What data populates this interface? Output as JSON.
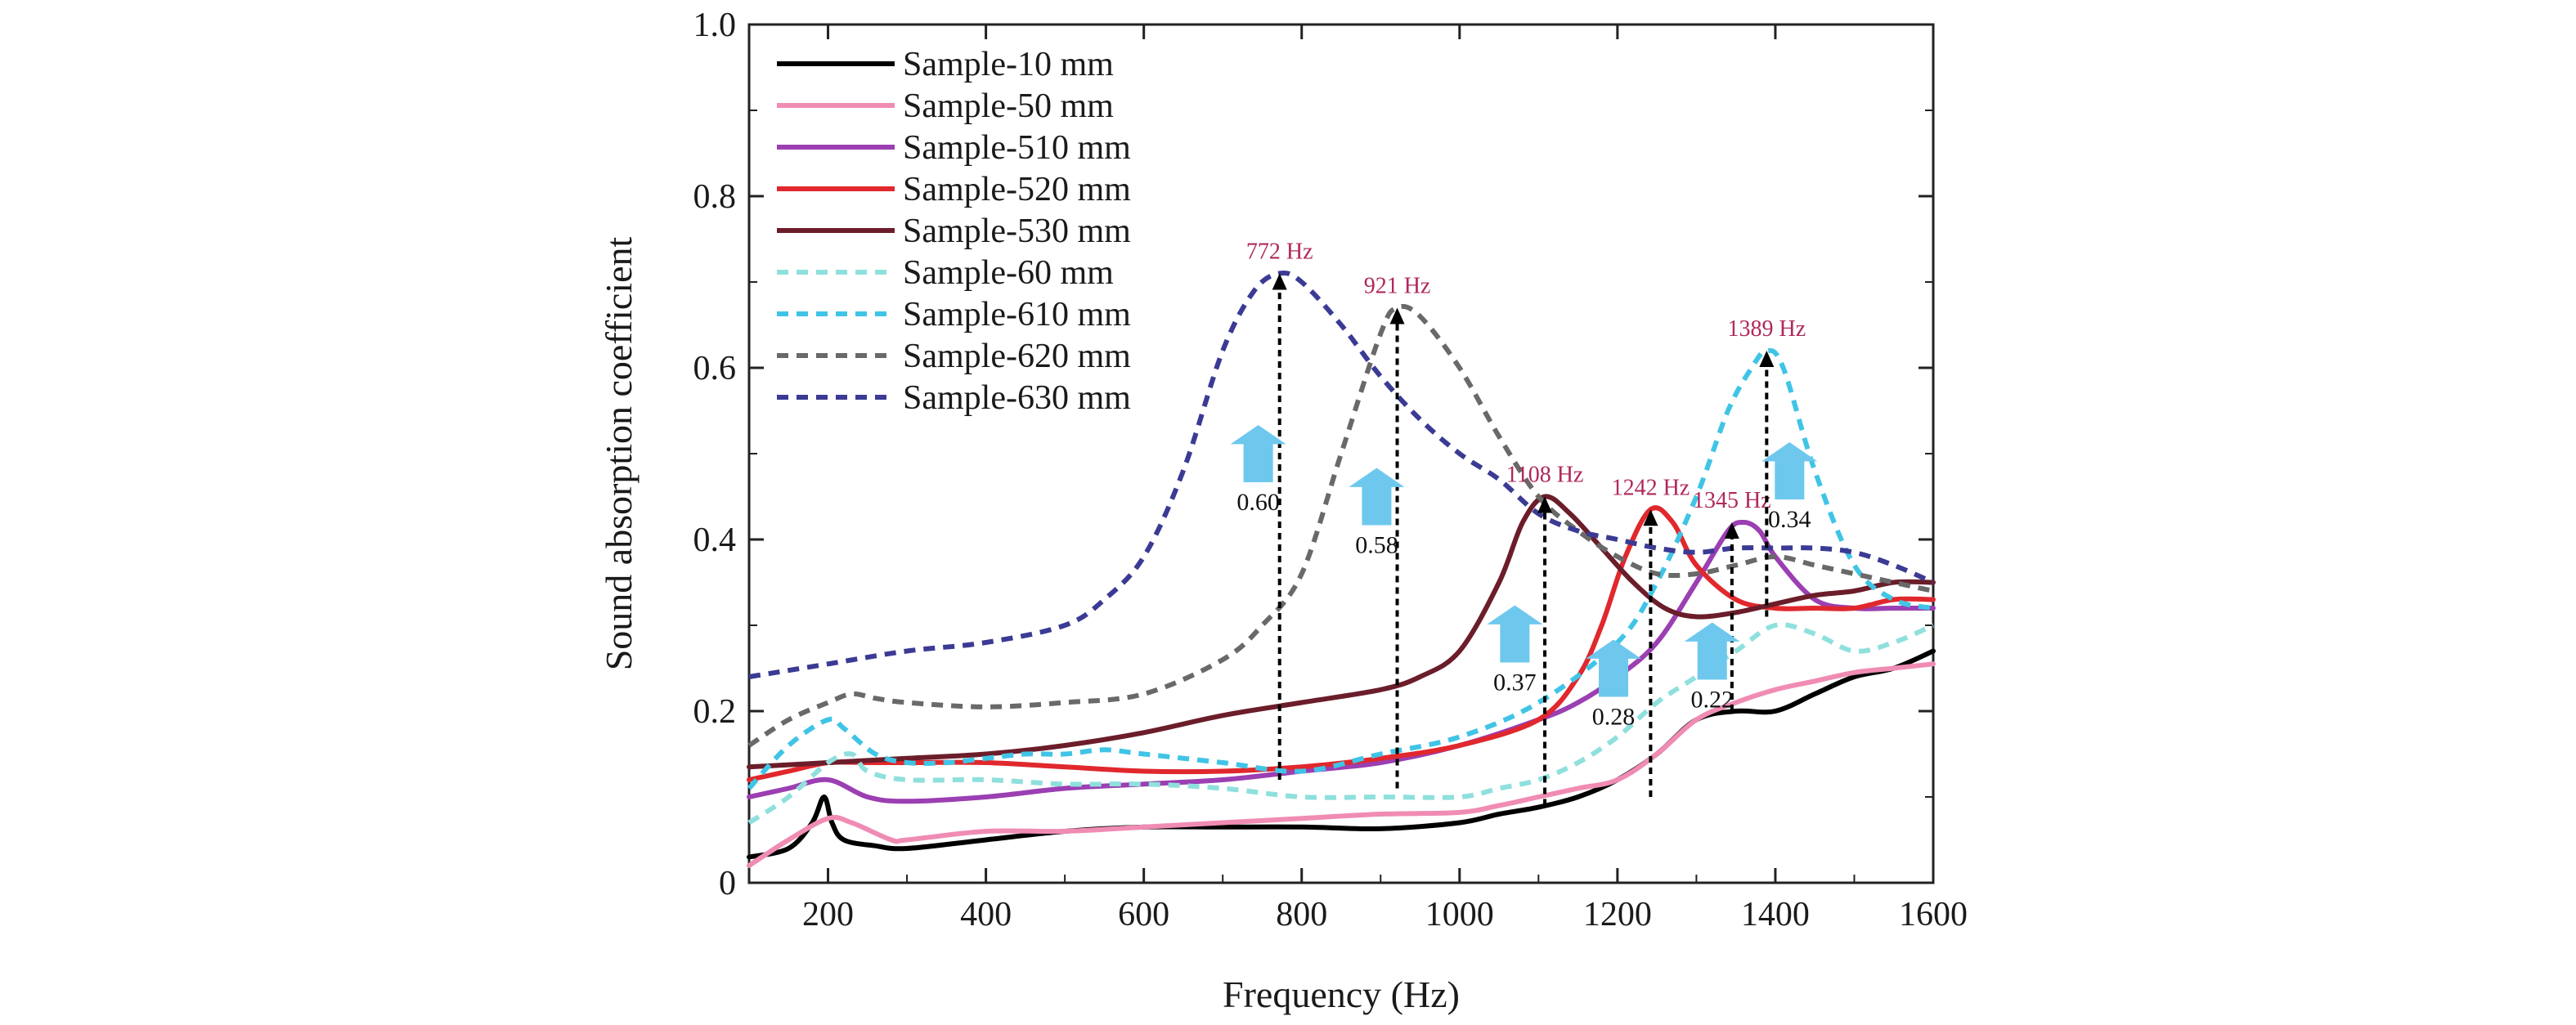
{
  "chart_data": {
    "type": "line",
    "xlabel": "Frequency (Hz)",
    "ylabel": "Sound absorption coefficient",
    "xlim": [
      100,
      1600
    ],
    "ylim": [
      0,
      1.0
    ],
    "xticks": [
      200,
      400,
      600,
      800,
      1000,
      1200,
      1400,
      1600
    ],
    "xtick_labels": [
      "200",
      "400",
      "600",
      "800",
      "1000",
      "1200",
      "1400",
      "1600"
    ],
    "yticks": [
      0,
      0.2,
      0.4,
      0.6,
      0.8,
      1.0
    ],
    "ytick_labels": [
      "0",
      "0.2",
      "0.4",
      "0.6",
      "0.8",
      "1.0"
    ],
    "grid": false,
    "legend_position": "top-left",
    "series": [
      {
        "name": "Sample-10 mm",
        "color": "#000000",
        "dash": "solid",
        "x": [
          100,
          150,
          180,
          195,
          205,
          220,
          260,
          300,
          400,
          500,
          600,
          700,
          800,
          900,
          1000,
          1050,
          1100,
          1150,
          1200,
          1250,
          1300,
          1350,
          1400,
          1450,
          1500,
          1550,
          1600
        ],
        "y": [
          0.03,
          0.04,
          0.07,
          0.1,
          0.07,
          0.05,
          0.043,
          0.04,
          0.05,
          0.06,
          0.065,
          0.065,
          0.065,
          0.063,
          0.07,
          0.08,
          0.088,
          0.1,
          0.12,
          0.15,
          0.19,
          0.2,
          0.2,
          0.22,
          0.24,
          0.25,
          0.27
        ]
      },
      {
        "name": "Sample-50 mm",
        "color": "#f08cb4",
        "dash": "solid",
        "x": [
          100,
          150,
          200,
          230,
          280,
          300,
          400,
          500,
          600,
          700,
          800,
          900,
          1000,
          1050,
          1100,
          1150,
          1200,
          1250,
          1300,
          1350,
          1400,
          1450,
          1500,
          1550,
          1600
        ],
        "y": [
          0.02,
          0.05,
          0.075,
          0.07,
          0.05,
          0.05,
          0.06,
          0.06,
          0.065,
          0.07,
          0.075,
          0.08,
          0.082,
          0.09,
          0.1,
          0.11,
          0.12,
          0.15,
          0.19,
          0.21,
          0.225,
          0.235,
          0.245,
          0.25,
          0.255
        ]
      },
      {
        "name": "Sample-510 mm",
        "color": "#9b3fb2",
        "dash": "solid",
        "x": [
          100,
          150,
          200,
          250,
          300,
          400,
          500,
          600,
          700,
          800,
          900,
          1000,
          1100,
          1150,
          1200,
          1250,
          1300,
          1340,
          1360,
          1380,
          1400,
          1450,
          1500,
          1550,
          1600
        ],
        "y": [
          0.1,
          0.11,
          0.12,
          0.1,
          0.095,
          0.1,
          0.11,
          0.115,
          0.12,
          0.13,
          0.14,
          0.16,
          0.19,
          0.21,
          0.24,
          0.28,
          0.35,
          0.41,
          0.42,
          0.41,
          0.38,
          0.33,
          0.32,
          0.32,
          0.32
        ]
      },
      {
        "name": "Sample-520 mm",
        "color": "#e0282d",
        "dash": "solid",
        "x": [
          100,
          150,
          200,
          250,
          300,
          400,
          500,
          600,
          700,
          800,
          900,
          1000,
          1100,
          1150,
          1180,
          1210,
          1242,
          1270,
          1300,
          1350,
          1400,
          1450,
          1500,
          1550,
          1600
        ],
        "y": [
          0.12,
          0.13,
          0.14,
          0.14,
          0.14,
          0.14,
          0.135,
          0.13,
          0.13,
          0.135,
          0.145,
          0.16,
          0.19,
          0.24,
          0.3,
          0.38,
          0.435,
          0.42,
          0.37,
          0.33,
          0.32,
          0.32,
          0.32,
          0.33,
          0.33
        ]
      },
      {
        "name": "Sample-530 mm",
        "color": "#6b1d2a",
        "dash": "solid",
        "x": [
          100,
          200,
          300,
          400,
          500,
          600,
          700,
          800,
          900,
          950,
          1000,
          1050,
          1080,
          1108,
          1140,
          1180,
          1220,
          1260,
          1300,
          1350,
          1400,
          1450,
          1500,
          1550,
          1600
        ],
        "y": [
          0.135,
          0.14,
          0.145,
          0.15,
          0.16,
          0.175,
          0.195,
          0.21,
          0.225,
          0.24,
          0.27,
          0.35,
          0.42,
          0.45,
          0.43,
          0.39,
          0.35,
          0.32,
          0.31,
          0.315,
          0.325,
          0.335,
          0.34,
          0.35,
          0.35
        ]
      },
      {
        "name": "Sample-60 mm",
        "color": "#8fe0dd",
        "dash": "dash",
        "x": [
          100,
          150,
          200,
          230,
          250,
          300,
          400,
          500,
          600,
          700,
          800,
          900,
          1000,
          1050,
          1100,
          1150,
          1200,
          1250,
          1300,
          1350,
          1400,
          1450,
          1500,
          1550,
          1600
        ],
        "y": [
          0.07,
          0.1,
          0.14,
          0.15,
          0.13,
          0.12,
          0.12,
          0.115,
          0.115,
          0.11,
          0.1,
          0.1,
          0.1,
          0.11,
          0.12,
          0.14,
          0.17,
          0.21,
          0.24,
          0.27,
          0.3,
          0.29,
          0.27,
          0.28,
          0.3
        ]
      },
      {
        "name": "Sample-610 mm",
        "color": "#40c4e6",
        "dash": "dash",
        "x": [
          100,
          150,
          200,
          220,
          260,
          300,
          350,
          400,
          450,
          500,
          550,
          600,
          700,
          800,
          900,
          1000,
          1100,
          1200,
          1250,
          1300,
          1340,
          1370,
          1389,
          1410,
          1450,
          1500,
          1550,
          1600
        ],
        "y": [
          0.11,
          0.16,
          0.19,
          0.18,
          0.15,
          0.14,
          0.14,
          0.145,
          0.15,
          0.15,
          0.155,
          0.15,
          0.14,
          0.13,
          0.15,
          0.17,
          0.21,
          0.28,
          0.35,
          0.45,
          0.55,
          0.6,
          0.62,
          0.6,
          0.48,
          0.37,
          0.33,
          0.32
        ]
      },
      {
        "name": "Sample-620 mm",
        "color": "#696969",
        "dash": "dash",
        "x": [
          100,
          150,
          200,
          230,
          260,
          300,
          400,
          500,
          600,
          700,
          750,
          800,
          850,
          900,
          921,
          950,
          1000,
          1050,
          1100,
          1150,
          1200,
          1250,
          1300,
          1350,
          1400,
          1450,
          1500,
          1550,
          1600
        ],
        "y": [
          0.16,
          0.19,
          0.21,
          0.22,
          0.215,
          0.21,
          0.205,
          0.21,
          0.22,
          0.26,
          0.3,
          0.36,
          0.5,
          0.64,
          0.67,
          0.66,
          0.6,
          0.52,
          0.45,
          0.41,
          0.38,
          0.36,
          0.36,
          0.37,
          0.38,
          0.37,
          0.36,
          0.35,
          0.34
        ]
      },
      {
        "name": "Sample-630 mm",
        "color": "#3b3a94",
        "dash": "dash",
        "x": [
          100,
          200,
          300,
          400,
          500,
          550,
          600,
          650,
          700,
          740,
          772,
          800,
          850,
          900,
          950,
          1000,
          1050,
          1100,
          1150,
          1200,
          1250,
          1300,
          1350,
          1400,
          1450,
          1500,
          1550,
          1600
        ],
        "y": [
          0.24,
          0.255,
          0.27,
          0.28,
          0.3,
          0.33,
          0.38,
          0.48,
          0.62,
          0.69,
          0.71,
          0.7,
          0.65,
          0.59,
          0.54,
          0.5,
          0.47,
          0.43,
          0.41,
          0.4,
          0.39,
          0.385,
          0.39,
          0.39,
          0.39,
          0.385,
          0.37,
          0.35
        ]
      }
    ],
    "peak_annotations": [
      {
        "label": "772 Hz",
        "x": 772,
        "y": 0.71
      },
      {
        "label": "921 Hz",
        "x": 921,
        "y": 0.67
      },
      {
        "label": "1108 Hz",
        "x": 1108,
        "y": 0.45
      },
      {
        "label": "1242 Hz",
        "x": 1242,
        "y": 0.435
      },
      {
        "label": "1345 Hz",
        "x": 1345,
        "y": 0.42
      },
      {
        "label": "1389 Hz",
        "x": 1389,
        "y": 0.62
      }
    ],
    "increase_annotations": [
      {
        "label": "0.60",
        "x": 745,
        "y": 0.5
      },
      {
        "label": "0.58",
        "x": 895,
        "y": 0.45
      },
      {
        "label": "0.37",
        "x": 1070,
        "y": 0.29
      },
      {
        "label": "0.28",
        "x": 1195,
        "y": 0.25
      },
      {
        "label": "0.22",
        "x": 1320,
        "y": 0.27
      },
      {
        "label": "0.34",
        "x": 1418,
        "y": 0.48
      }
    ],
    "annotation_color": "#b0285c",
    "arrow_color": "#6ec8ee"
  }
}
